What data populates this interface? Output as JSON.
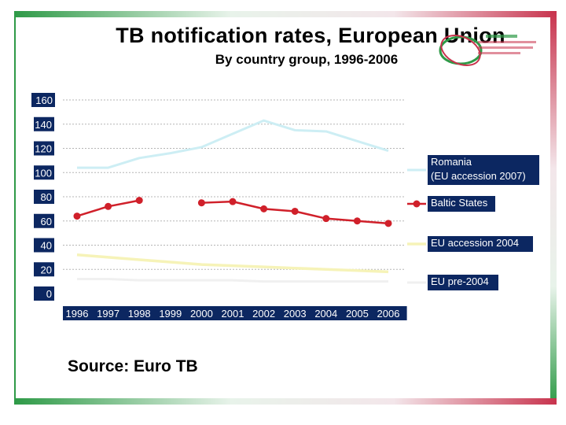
{
  "header": {
    "title": "TB notification rates, European Union",
    "subtitle": "By country group, 1996-2006"
  },
  "logo": {
    "icon": "health-agency-logo-icon"
  },
  "footer": {
    "source": "Source: Euro TB"
  },
  "colors": {
    "romania": "#cdeef4",
    "baltic": "#d0202a",
    "eu2004": "#f6f3b8",
    "eupre2004": "#f0f0f0",
    "label_bg": "#0c2761"
  },
  "chart_data": {
    "type": "line",
    "title": "TB notification rates, European Union",
    "subtitle": "By country group, 1996-2006",
    "xlabel": "",
    "ylabel": "",
    "ylim": [
      0,
      160
    ],
    "yticks": [
      "160",
      "140",
      "120",
      "100",
      "80",
      "60",
      "40",
      "20",
      "0"
    ],
    "categories": [
      "1996",
      "1997",
      "1998",
      "1999",
      "2000",
      "2001",
      "2002",
      "2003",
      "2004",
      "2005",
      "2006"
    ],
    "grid": true,
    "legend": "right",
    "series": [
      {
        "name": "Romania\n(EU accession 2007)",
        "values": [
          104,
          104,
          112,
          116,
          121,
          132,
          143,
          135,
          134,
          126,
          118
        ]
      },
      {
        "name": "Baltic States",
        "values": [
          64,
          72,
          77,
          null,
          75,
          76,
          70,
          68,
          62,
          60,
          58
        ]
      },
      {
        "name": "EU accession 2004",
        "values": [
          32,
          30,
          28,
          26,
          24,
          23,
          22,
          21,
          20,
          19,
          18
        ]
      },
      {
        "name": "EU pre-2004",
        "values": [
          12,
          12,
          11,
          11,
          11,
          11,
          10,
          10,
          10,
          10,
          10
        ]
      }
    ]
  }
}
